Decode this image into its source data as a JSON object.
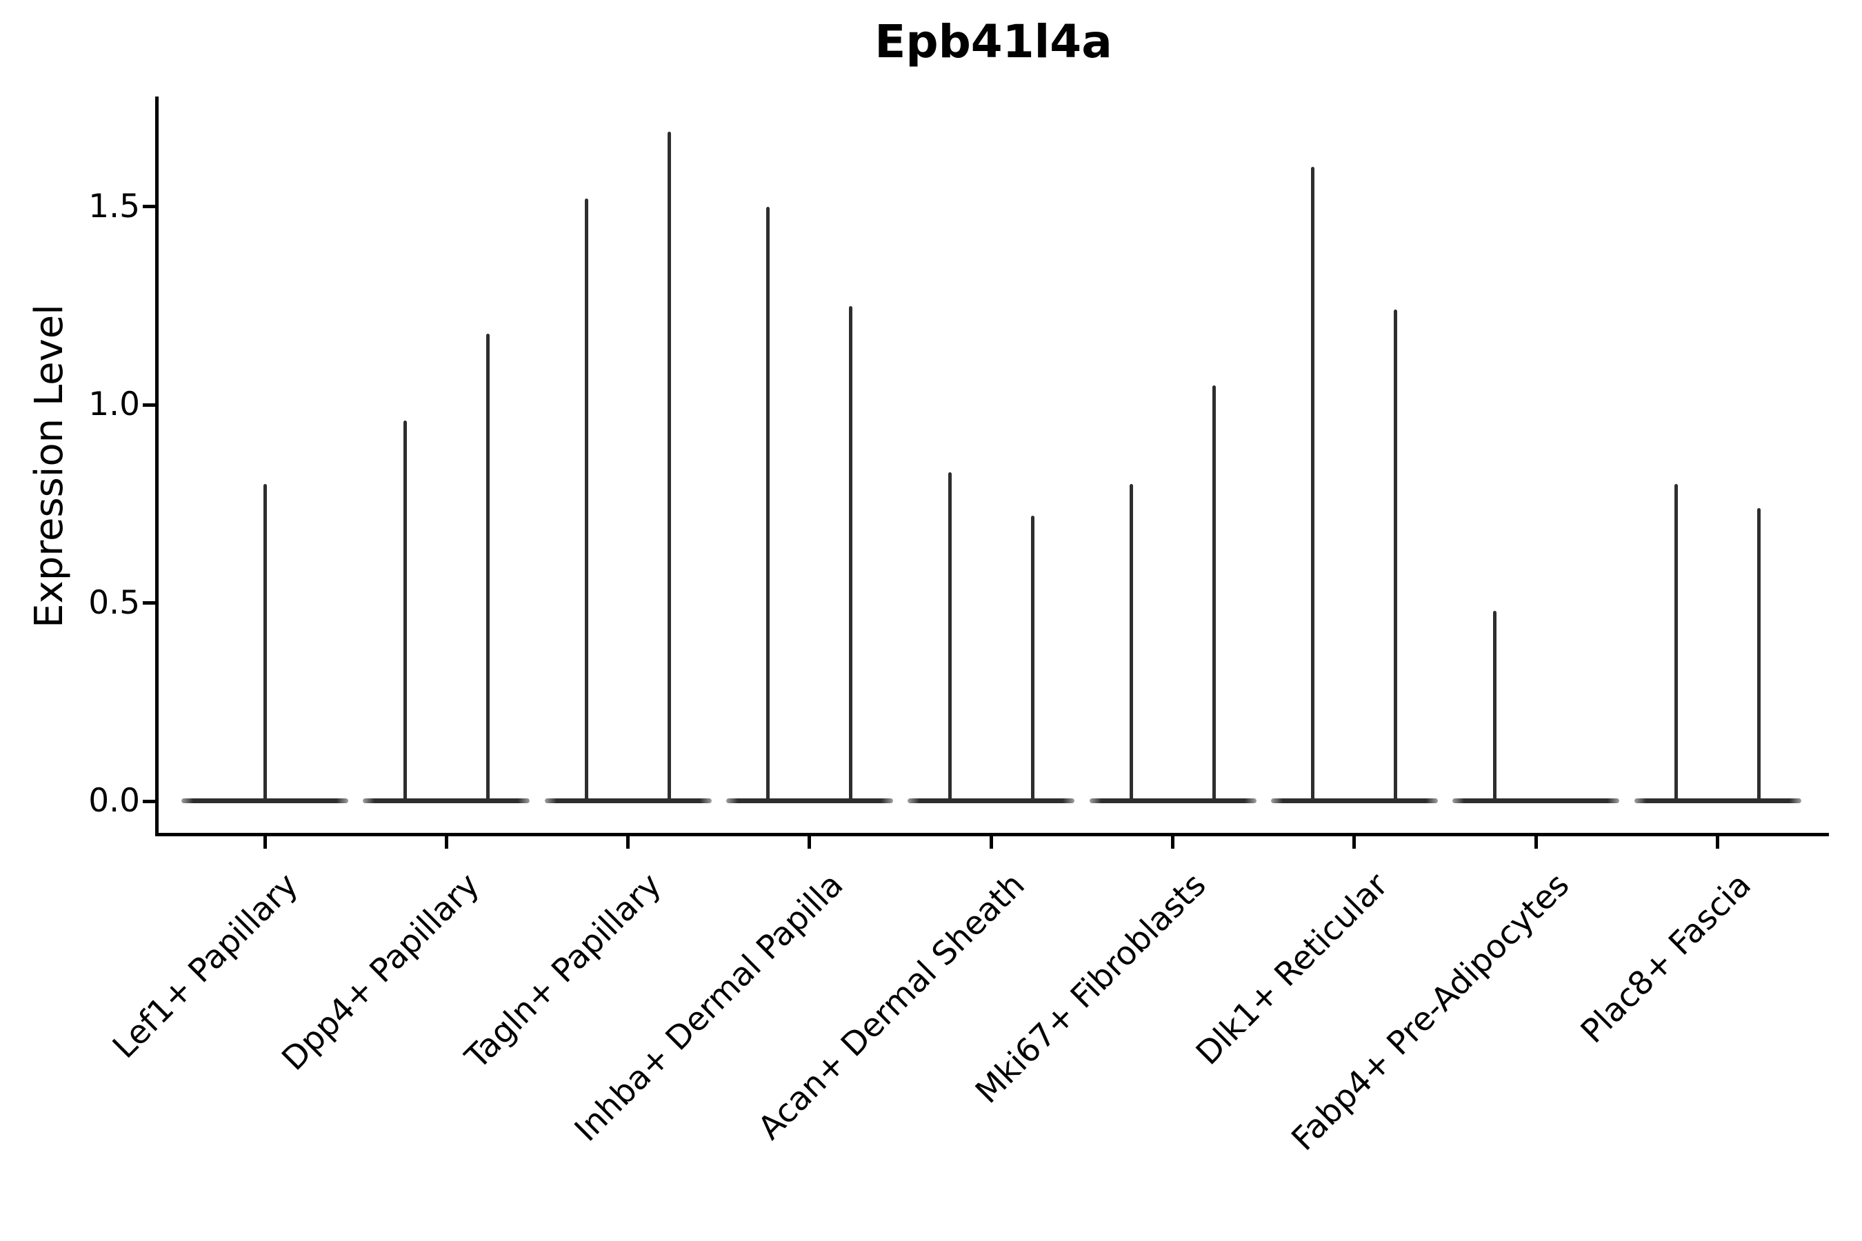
{
  "chart_data": {
    "type": "violin",
    "title": "Epb41l4a",
    "xlabel": "",
    "ylabel": "Expression Level",
    "ylim": [
      -0.08,
      1.78
    ],
    "yticks": [
      0.0,
      0.5,
      1.0,
      1.5
    ],
    "ytick_labels": [
      "0.0",
      "0.5",
      "1.0",
      "1.5"
    ],
    "grid": false,
    "legend": "none",
    "colors": {
      "violin": "#2e2e2e",
      "axis": "#000000",
      "text": "#000000",
      "background": "#ffffff"
    },
    "categories": [
      "Lef1+ Papillary",
      "Dpp4+ Papillary",
      "Tagln+ Papillary",
      "Inhba+ Dermal Papilla",
      "Acan+ Dermal Sheath",
      "Mki67+ Fibroblasts",
      "Dlk1+ Reticular",
      "Fabp4+ Pre-Adipocytes",
      "Plac8+ Fascia"
    ],
    "violins": [
      {
        "category": "Lef1+ Papillary",
        "baseline_value": 0.0,
        "groups": [
          {
            "group": "center",
            "max_expression": 0.8
          }
        ]
      },
      {
        "category": "Dpp4+ Papillary",
        "baseline_value": 0.0,
        "groups": [
          {
            "group": "left",
            "max_expression": 0.96
          },
          {
            "group": "right",
            "max_expression": 1.18
          }
        ]
      },
      {
        "category": "Tagln+ Papillary",
        "baseline_value": 0.0,
        "groups": [
          {
            "group": "left",
            "max_expression": 1.52
          },
          {
            "group": "right",
            "max_expression": 1.69
          }
        ]
      },
      {
        "category": "Inhba+ Dermal Papilla",
        "baseline_value": 0.0,
        "groups": [
          {
            "group": "left",
            "max_expression": 1.5
          },
          {
            "group": "right",
            "max_expression": 1.25
          }
        ]
      },
      {
        "category": "Acan+ Dermal Sheath",
        "baseline_value": 0.0,
        "groups": [
          {
            "group": "left",
            "max_expression": 0.83
          },
          {
            "group": "right",
            "max_expression": 0.72
          }
        ]
      },
      {
        "category": "Mki67+ Fibroblasts",
        "baseline_value": 0.0,
        "groups": [
          {
            "group": "left",
            "max_expression": 0.8
          },
          {
            "group": "right",
            "max_expression": 1.05
          }
        ]
      },
      {
        "category": "Dlk1+ Reticular",
        "baseline_value": 0.0,
        "groups": [
          {
            "group": "left",
            "max_expression": 1.6
          },
          {
            "group": "right",
            "max_expression": 1.24
          }
        ]
      },
      {
        "category": "Fabp4+ Pre-Adipocytes",
        "baseline_value": 0.0,
        "groups": [
          {
            "group": "left",
            "max_expression": 0.48
          }
        ]
      },
      {
        "category": "Plac8+ Fascia",
        "baseline_value": 0.0,
        "groups": [
          {
            "group": "left",
            "max_expression": 0.8
          },
          {
            "group": "right",
            "max_expression": 0.74
          }
        ]
      }
    ]
  }
}
